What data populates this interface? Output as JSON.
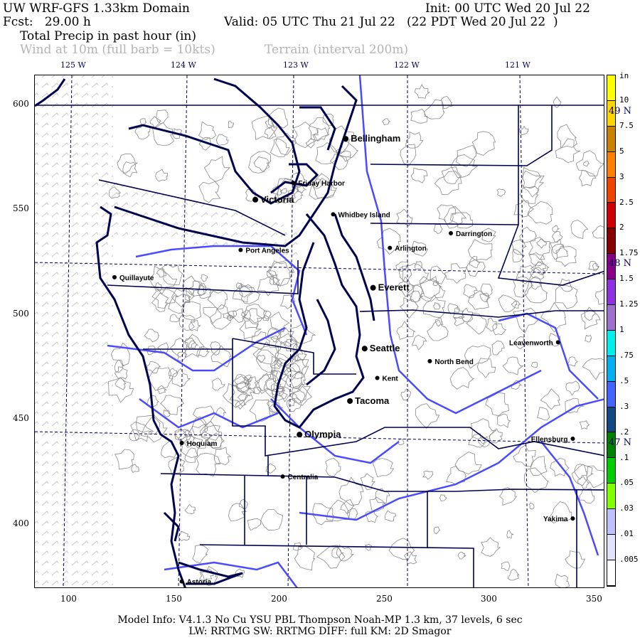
{
  "header": {
    "title": "UW WRF-GFS 1.33km Domain",
    "init": "Init: 00 UTC Wed 20 Jul 22",
    "fcst": "Fcst:   29.00 h",
    "valid": "Valid: 05 UTC Thu 21 Jul 22   (22 PDT Wed 20 Jul 22  )",
    "field": "Total Precip in past hour (in)",
    "wind": "Wind at 10m (full barb = 10kts)",
    "terrain": "Terrain (interval 200m)"
  },
  "longitude_labels": [
    "125 W",
    "124 W",
    "123 W",
    "122 W",
    "121 W"
  ],
  "latitude_labels": [
    "49 N",
    "48 N",
    "47 N"
  ],
  "x_ticks": [
    "100",
    "150",
    "200",
    "250",
    "300",
    "350"
  ],
  "y_ticks": [
    "600",
    "550",
    "500",
    "450",
    "400"
  ],
  "colorbar": {
    "unit": "in",
    "labels": [
      "10",
      "7.5",
      "5",
      "3",
      "2.5",
      "2",
      "1.75",
      "1.5",
      "1.25",
      "1",
      ".75",
      ".5",
      ".3",
      ".2",
      ".1",
      ".05",
      ".03",
      ".01",
      ".005"
    ],
    "colors": [
      "#ffff00",
      "#ffd400",
      "#c88200",
      "#ff8000",
      "#ee4400",
      "#cc0000",
      "#840000",
      "#880088",
      "#9030e0",
      "#a070d0",
      "#00eeee",
      "#00b0f0",
      "#4464ff",
      "#104888",
      "#008000",
      "#00cc00",
      "#80ff00",
      "#c0c0ff",
      "#e2e2fa",
      "#ffffff"
    ]
  },
  "colors": {
    "coast": "#000050",
    "rivers": "#4a4aff",
    "terrain": "#8a8a8a",
    "wind": "#c8c8c8",
    "graticule": "#000060"
  },
  "cities": [
    {
      "name": "Bellingham",
      "x": 232,
      "y": 584,
      "major": true
    },
    {
      "name": "Friday Harbor",
      "x": 207,
      "y": 563,
      "major": false
    },
    {
      "name": "Victoria",
      "x": 189,
      "y": 555,
      "major": true
    },
    {
      "name": "Whidbey Island",
      "x": 226,
      "y": 548,
      "major": false
    },
    {
      "name": "Darrington",
      "x": 282,
      "y": 539,
      "major": false
    },
    {
      "name": "Arlington",
      "x": 253,
      "y": 532,
      "major": false
    },
    {
      "name": "Port Angeles",
      "x": 182,
      "y": 531,
      "major": false
    },
    {
      "name": "Quillayute",
      "x": 122,
      "y": 518,
      "major": false
    },
    {
      "name": "Everett",
      "x": 245,
      "y": 513,
      "major": true
    },
    {
      "name": "Leavenworth",
      "x": 333,
      "y": 487,
      "major": false
    },
    {
      "name": "Seattle",
      "x": 241,
      "y": 484,
      "major": true
    },
    {
      "name": "North Bend",
      "x": 272,
      "y": 478,
      "major": false
    },
    {
      "name": "Kent",
      "x": 247,
      "y": 470,
      "major": false
    },
    {
      "name": "Tacoma",
      "x": 234,
      "y": 459,
      "major": true
    },
    {
      "name": "Olympia",
      "x": 210,
      "y": 443,
      "major": true
    },
    {
      "name": "Ellensburg",
      "x": 340,
      "y": 441,
      "major": false
    },
    {
      "name": "Hoquiam",
      "x": 154,
      "y": 439,
      "major": false
    },
    {
      "name": "Centralia",
      "x": 202,
      "y": 423,
      "major": false
    },
    {
      "name": "Yakima",
      "x": 340,
      "y": 403,
      "major": false
    },
    {
      "name": "Astoria",
      "x": 154,
      "y": 373,
      "major": false
    }
  ],
  "footer": {
    "line1": "Model Info: V4.1.3    No Cu    YSU PBL   Thompson     Noah-MP    1.3 km,   37 levels,     6 sec",
    "line2": "LW: RRTMG SW: RRTMG    DIFF: full    KM: 2D Smagor"
  }
}
